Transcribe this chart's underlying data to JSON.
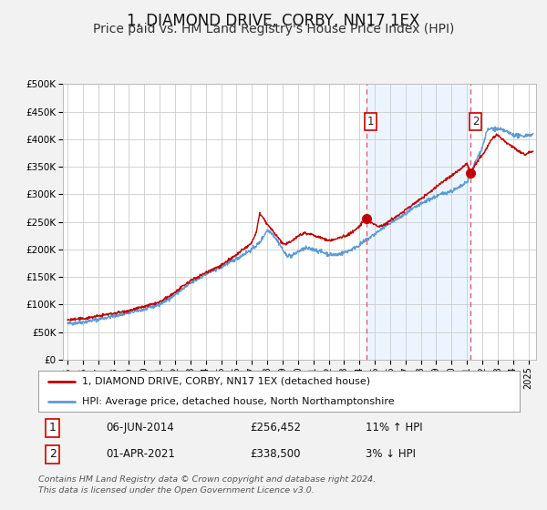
{
  "title": "1, DIAMOND DRIVE, CORBY, NN17 1EX",
  "subtitle": "Price paid vs. HM Land Registry's House Price Index (HPI)",
  "ylim": [
    0,
    500000
  ],
  "yticks": [
    0,
    50000,
    100000,
    150000,
    200000,
    250000,
    300000,
    350000,
    400000,
    450000,
    500000
  ],
  "ytick_labels": [
    "£0",
    "£50K",
    "£100K",
    "£150K",
    "£200K",
    "£250K",
    "£300K",
    "£350K",
    "£400K",
    "£450K",
    "£500K"
  ],
  "xlim_start": 1994.7,
  "xlim_end": 2025.5,
  "xticks": [
    1995,
    1996,
    1997,
    1998,
    1999,
    2000,
    2001,
    2002,
    2003,
    2004,
    2005,
    2006,
    2007,
    2008,
    2009,
    2010,
    2011,
    2012,
    2013,
    2014,
    2015,
    2016,
    2017,
    2018,
    2019,
    2020,
    2021,
    2022,
    2023,
    2024,
    2025
  ],
  "hpi_color": "#5b9bd5",
  "price_color": "#c00000",
  "marker_color": "#c00000",
  "vline_color": "#e06060",
  "shade_color": "#ddeeff",
  "background_color": "#f2f2f2",
  "plot_bg_color": "#ffffff",
  "grid_color": "#cccccc",
  "marker1_x": 2014.44,
  "marker1_y": 256452,
  "marker2_x": 2021.25,
  "marker2_y": 338500,
  "marker1_label": "1",
  "marker2_label": "2",
  "legend_line1": "1, DIAMOND DRIVE, CORBY, NN17 1EX (detached house)",
  "legend_line2": "HPI: Average price, detached house, North Northamptonshire",
  "table_row1": [
    "1",
    "06-JUN-2014",
    "£256,452",
    "11% ↑ HPI"
  ],
  "table_row2": [
    "2",
    "01-APR-2021",
    "£338,500",
    "3% ↓ HPI"
  ],
  "footer": "Contains HM Land Registry data © Crown copyright and database right 2024.\nThis data is licensed under the Open Government Licence v3.0.",
  "title_fontsize": 12,
  "subtitle_fontsize": 10
}
